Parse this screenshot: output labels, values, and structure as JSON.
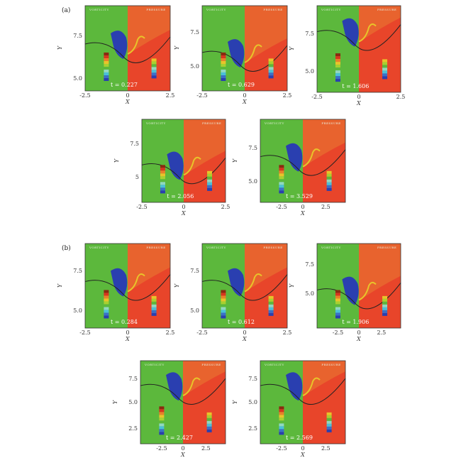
{
  "figure": {
    "group_labels": [
      "(a)",
      "(b)"
    ],
    "axis_labels": {
      "x": "X",
      "y": "Y"
    },
    "panel_headers": {
      "left": "VORTICITY",
      "right": "PRESSURE"
    },
    "colors": {
      "vorticity_bg": "#5cb83c",
      "pressure_bg": "#e8452a",
      "pressure_upper": "#e8632e",
      "vortex_blue": "#2a3fb0",
      "legend_red": "#d8351f",
      "legend_yellow": "#e8c42a",
      "legend_cyan": "#4ac0d8"
    },
    "panels": [
      {
        "id": "a1",
        "time": "t = 0.227",
        "xticks": [
          "-2.5",
          "0",
          "2.5"
        ],
        "yticks": [
          "7.5",
          "5.0"
        ]
      },
      {
        "id": "a2",
        "time": "t = 0.629",
        "xticks": [
          "-2.5",
          "0",
          "2.5"
        ],
        "yticks": [
          "7.5",
          "5.0"
        ]
      },
      {
        "id": "a3",
        "time": "t = 1.606",
        "xticks": [
          "-2.5",
          "0",
          "2.5"
        ],
        "yticks": [
          "7.5",
          "5.0"
        ]
      },
      {
        "id": "a4",
        "time": "t = 2.056",
        "xticks": [
          "-2.5",
          "0",
          "2.5"
        ],
        "yticks": [
          "7.5",
          "5"
        ]
      },
      {
        "id": "a5",
        "time": "t = 3.529",
        "xticks": [
          "-2.5",
          "0",
          "2.5"
        ],
        "yticks": [
          "7.5",
          "5.0"
        ]
      },
      {
        "id": "b1",
        "time": "t = 0.284",
        "xticks": [
          "-2.5",
          "0",
          "2.5"
        ],
        "yticks": [
          "7.5",
          "5.0"
        ]
      },
      {
        "id": "b2",
        "time": "t = 0.612",
        "xticks": [
          "-2.5",
          "0",
          "2.5"
        ],
        "yticks": [
          "7.5",
          "5.0"
        ]
      },
      {
        "id": "b3",
        "time": "t = 1.906",
        "xticks": [
          "-2.5",
          "0",
          "2.5"
        ],
        "yticks": [
          "7.5",
          "5.0"
        ]
      },
      {
        "id": "b4",
        "time": "t = 2.427",
        "xticks": [
          "-2.5",
          "0",
          "2.5"
        ],
        "yticks": [
          "7.5",
          "5.0",
          "2.5"
        ]
      },
      {
        "id": "b5",
        "time": "t = 2.569",
        "xticks": [
          "-2.5",
          "0",
          "2.5"
        ],
        "yticks": [
          "7.5",
          "5.0",
          "2.5"
        ]
      }
    ]
  }
}
